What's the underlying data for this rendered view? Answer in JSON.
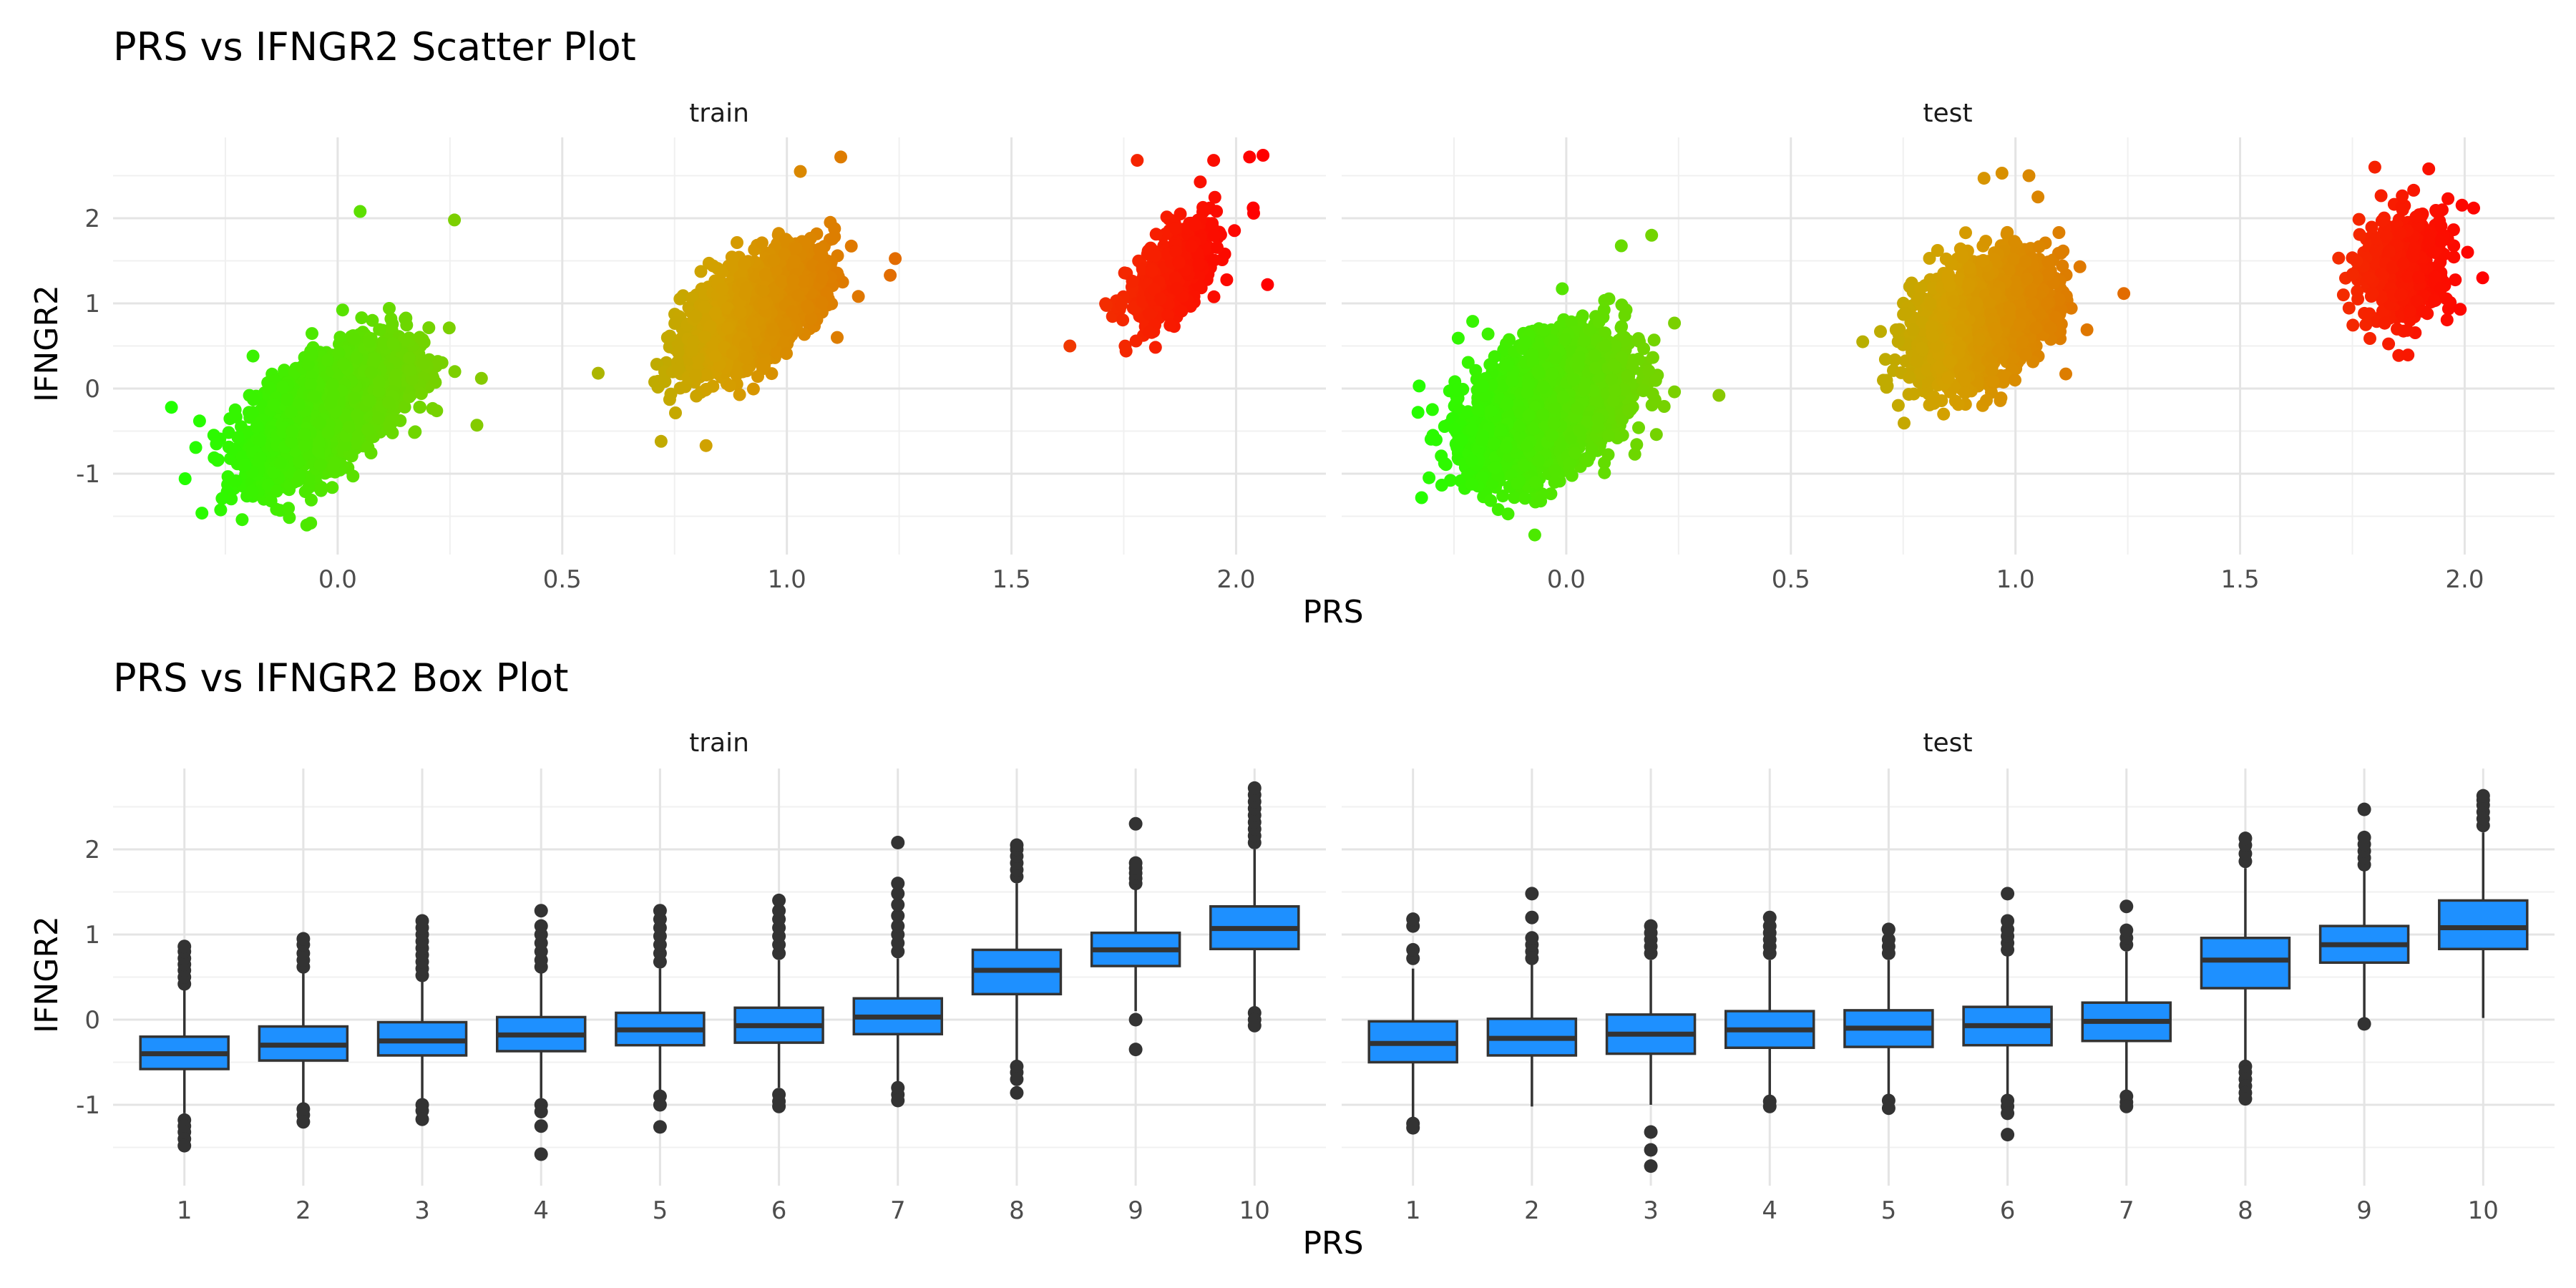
{
  "chart_data": [
    {
      "type": "scatter",
      "title": "PRS vs IFNGR2 Scatter Plot",
      "xlabel": "PRS",
      "ylabel": "IFNGR2",
      "xlim": [
        -0.5,
        2.2
      ],
      "ylim": [
        -1.95,
        2.95
      ],
      "x_ticks": [
        0.0,
        0.5,
        1.0,
        1.5,
        2.0
      ],
      "x_tick_labels": [
        "0.0",
        "0.5",
        "1.0",
        "1.5",
        "2.0"
      ],
      "y_ticks": [
        -1,
        0,
        1,
        2
      ],
      "y_tick_labels": [
        "-1",
        "0",
        "1",
        "2"
      ],
      "grid": true,
      "color_scale": {
        "low": "#22ff00",
        "mid": "#d4a000",
        "high": "#ff0000"
      },
      "panels": [
        {
          "name": "train",
          "clusters": [
            {
              "x_mean": -0.02,
              "y_mean": -0.25,
              "x_sd": 0.085,
              "y_sd": 0.38,
              "corr": 0.6,
              "n": 2600
            },
            {
              "x_mean": 0.92,
              "y_mean": 0.9,
              "x_sd": 0.075,
              "y_sd": 0.34,
              "corr": 0.6,
              "n": 1900
            },
            {
              "x_mean": 1.86,
              "y_mean": 1.35,
              "x_sd": 0.05,
              "y_sd": 0.32,
              "corr": 0.6,
              "n": 450
            }
          ],
          "outliers": [
            {
              "x": 0.05,
              "y": 2.08
            },
            {
              "x": 0.26,
              "y": 1.98
            },
            {
              "x": -0.37,
              "y": -0.22
            },
            {
              "x": 0.31,
              "y": -0.43
            },
            {
              "x": 0.32,
              "y": 0.12
            },
            {
              "x": -0.06,
              "y": -1.58
            },
            {
              "x": 1.03,
              "y": 2.55
            },
            {
              "x": 1.12,
              "y": 2.72
            },
            {
              "x": 0.58,
              "y": 0.18
            },
            {
              "x": 0.72,
              "y": -0.62
            },
            {
              "x": 0.82,
              "y": -0.67
            },
            {
              "x": 1.23,
              "y": 1.33
            },
            {
              "x": 1.95,
              "y": 2.68
            },
            {
              "x": 2.03,
              "y": 2.72
            },
            {
              "x": 2.06,
              "y": 2.74
            },
            {
              "x": 2.07,
              "y": 1.22
            },
            {
              "x": 1.63,
              "y": 0.5
            },
            {
              "x": 1.78,
              "y": 2.68
            }
          ]
        },
        {
          "name": "test",
          "clusters": [
            {
              "x_mean": -0.04,
              "y_mean": -0.2,
              "x_sd": 0.085,
              "y_sd": 0.4,
              "corr": 0.4,
              "n": 2600
            },
            {
              "x_mean": 0.92,
              "y_mean": 0.8,
              "x_sd": 0.075,
              "y_sd": 0.36,
              "corr": 0.4,
              "n": 1900
            },
            {
              "x_mean": 1.87,
              "y_mean": 1.45,
              "x_sd": 0.05,
              "y_sd": 0.32,
              "corr": 0.2,
              "n": 450
            }
          ],
          "outliers": [
            {
              "x": 0.19,
              "y": 1.8
            },
            {
              "x": 0.34,
              "y": -0.08
            },
            {
              "x": -0.33,
              "y": -0.28
            },
            {
              "x": -0.07,
              "y": -1.72
            },
            {
              "x": 0.93,
              "y": 2.47
            },
            {
              "x": 0.97,
              "y": 2.53
            },
            {
              "x": 1.03,
              "y": 2.5
            },
            {
              "x": 1.05,
              "y": 2.25
            },
            {
              "x": 0.66,
              "y": 0.55
            },
            {
              "x": 0.84,
              "y": -0.3
            },
            {
              "x": 1.8,
              "y": 2.6
            },
            {
              "x": 1.92,
              "y": 2.58
            },
            {
              "x": 2.02,
              "y": 2.12
            },
            {
              "x": 2.04,
              "y": 1.3
            },
            {
              "x": 1.73,
              "y": 1.1
            },
            {
              "x": 1.78,
              "y": 0.75
            },
            {
              "x": 1.99,
              "y": 0.93
            }
          ]
        }
      ]
    },
    {
      "type": "box",
      "title": "PRS vs IFNGR2 Box Plot",
      "xlabel": "PRS",
      "ylabel": "IFNGR2",
      "categories": [
        "1",
        "2",
        "3",
        "4",
        "5",
        "6",
        "7",
        "8",
        "9",
        "10"
      ],
      "ylim": [
        -1.95,
        2.95
      ],
      "y_ticks": [
        -1,
        0,
        1,
        2
      ],
      "y_tick_labels": [
        "-1",
        "0",
        "1",
        "2"
      ],
      "grid": true,
      "fill_color": "#1e90ff",
      "panels": [
        {
          "name": "train",
          "boxes": [
            {
              "lower_whisker": -1.1,
              "q1": -0.58,
              "median": -0.4,
              "q3": -0.2,
              "upper_whisker": 0.35,
              "outliers": [
                0.42,
                0.5,
                0.58,
                0.65,
                0.72,
                0.8,
                0.86,
                -1.18,
                -1.25,
                -1.32,
                -1.4,
                -1.48
              ]
            },
            {
              "lower_whisker": -1.0,
              "q1": -0.48,
              "median": -0.3,
              "q3": -0.08,
              "upper_whisker": 0.55,
              "outliers": [
                0.62,
                0.7,
                0.78,
                0.88,
                0.95,
                -1.05,
                -1.12,
                -1.2
              ]
            },
            {
              "lower_whisker": -0.95,
              "q1": -0.42,
              "median": -0.25,
              "q3": -0.03,
              "upper_whisker": 0.45,
              "outliers": [
                0.52,
                0.6,
                0.68,
                0.76,
                0.84,
                0.92,
                1.0,
                1.08,
                1.16,
                -1.0,
                -1.07,
                -1.17
              ]
            },
            {
              "lower_whisker": -0.92,
              "q1": -0.37,
              "median": -0.18,
              "q3": 0.03,
              "upper_whisker": 0.55,
              "outliers": [
                0.62,
                0.7,
                0.8,
                0.9,
                1.0,
                1.1,
                1.28,
                -1.0,
                -1.08,
                -1.25,
                -1.58
              ]
            },
            {
              "lower_whisker": -0.85,
              "q1": -0.3,
              "median": -0.12,
              "q3": 0.08,
              "upper_whisker": 0.6,
              "outliers": [
                0.68,
                0.78,
                0.88,
                0.98,
                1.08,
                1.18,
                1.28,
                -0.9,
                -1.0,
                -1.26
              ]
            },
            {
              "lower_whisker": -0.8,
              "q1": -0.27,
              "median": -0.07,
              "q3": 0.14,
              "upper_whisker": 0.7,
              "outliers": [
                0.78,
                0.88,
                0.98,
                1.08,
                1.18,
                1.28,
                1.4,
                -0.88,
                -0.96,
                -1.02
              ]
            },
            {
              "lower_whisker": -0.75,
              "q1": -0.17,
              "median": 0.03,
              "q3": 0.25,
              "upper_whisker": 0.72,
              "outliers": [
                0.8,
                0.9,
                1.0,
                1.1,
                1.22,
                1.35,
                1.48,
                1.6,
                2.08,
                -0.8,
                -0.88,
                -0.95
              ]
            },
            {
              "lower_whisker": -0.48,
              "q1": 0.3,
              "median": 0.58,
              "q3": 0.82,
              "upper_whisker": 1.6,
              "outliers": [
                1.68,
                1.76,
                1.84,
                1.92,
                2.0,
                2.05,
                -0.55,
                -0.62,
                -0.7,
                -0.86
              ]
            },
            {
              "lower_whisker": 0.1,
              "q1": 0.63,
              "median": 0.82,
              "q3": 1.02,
              "upper_whisker": 1.55,
              "outliers": [
                1.6,
                1.66,
                1.72,
                1.78,
                1.84,
                2.3,
                0.0,
                -0.35
              ]
            },
            {
              "lower_whisker": 0.15,
              "q1": 0.83,
              "median": 1.07,
              "q3": 1.33,
              "upper_whisker": 2.0,
              "outliers": [
                2.08,
                2.16,
                2.24,
                2.32,
                2.4,
                2.48,
                2.56,
                2.64,
                2.72,
                0.08,
                0.0,
                -0.07
              ]
            }
          ]
        },
        {
          "name": "test",
          "boxes": [
            {
              "lower_whisker": -1.15,
              "q1": -0.5,
              "median": -0.28,
              "q3": -0.02,
              "upper_whisker": 0.6,
              "outliers": [
                0.72,
                0.82,
                1.1,
                1.18,
                -1.22,
                -1.27
              ]
            },
            {
              "lower_whisker": -1.02,
              "q1": -0.42,
              "median": -0.22,
              "q3": 0.01,
              "upper_whisker": 0.65,
              "outliers": [
                0.72,
                0.8,
                0.88,
                0.96,
                1.2,
                1.48
              ]
            },
            {
              "lower_whisker": -1.0,
              "q1": -0.4,
              "median": -0.17,
              "q3": 0.06,
              "upper_whisker": 0.7,
              "outliers": [
                0.78,
                0.86,
                0.94,
                1.02,
                1.1,
                -1.32,
                -1.53,
                -1.72
              ]
            },
            {
              "lower_whisker": -0.9,
              "q1": -0.33,
              "median": -0.12,
              "q3": 0.1,
              "upper_whisker": 0.7,
              "outliers": [
                0.78,
                0.86,
                0.94,
                1.02,
                1.1,
                1.2,
                -0.96,
                -1.02
              ]
            },
            {
              "lower_whisker": -0.88,
              "q1": -0.32,
              "median": -0.1,
              "q3": 0.11,
              "upper_whisker": 0.7,
              "outliers": [
                0.78,
                0.86,
                0.94,
                1.06,
                -0.95,
                -1.04
              ]
            },
            {
              "lower_whisker": -0.88,
              "q1": -0.3,
              "median": -0.07,
              "q3": 0.15,
              "upper_whisker": 0.75,
              "outliers": [
                0.82,
                0.9,
                0.98,
                1.06,
                1.16,
                1.48,
                -0.95,
                -1.02,
                -1.1,
                -1.35
              ]
            },
            {
              "lower_whisker": -0.85,
              "q1": -0.25,
              "median": -0.02,
              "q3": 0.2,
              "upper_whisker": 0.8,
              "outliers": [
                0.88,
                0.96,
                1.05,
                1.33,
                -0.9,
                -0.97,
                -1.02
              ]
            },
            {
              "lower_whisker": -0.48,
              "q1": 0.37,
              "median": 0.7,
              "q3": 0.96,
              "upper_whisker": 1.78,
              "outliers": [
                1.86,
                1.95,
                2.05,
                2.13,
                -0.55,
                -0.62,
                -0.7,
                -0.78,
                -0.86,
                -0.93
              ]
            },
            {
              "lower_whisker": 0.02,
              "q1": 0.67,
              "median": 0.88,
              "q3": 1.1,
              "upper_whisker": 1.75,
              "outliers": [
                1.82,
                1.9,
                1.98,
                2.06,
                2.14,
                2.47,
                -0.05
              ]
            },
            {
              "lower_whisker": 0.02,
              "q1": 0.83,
              "median": 1.08,
              "q3": 1.4,
              "upper_whisker": 2.2,
              "outliers": [
                2.28,
                2.36,
                2.44,
                2.52,
                2.58,
                2.63
              ]
            }
          ]
        }
      ]
    }
  ]
}
